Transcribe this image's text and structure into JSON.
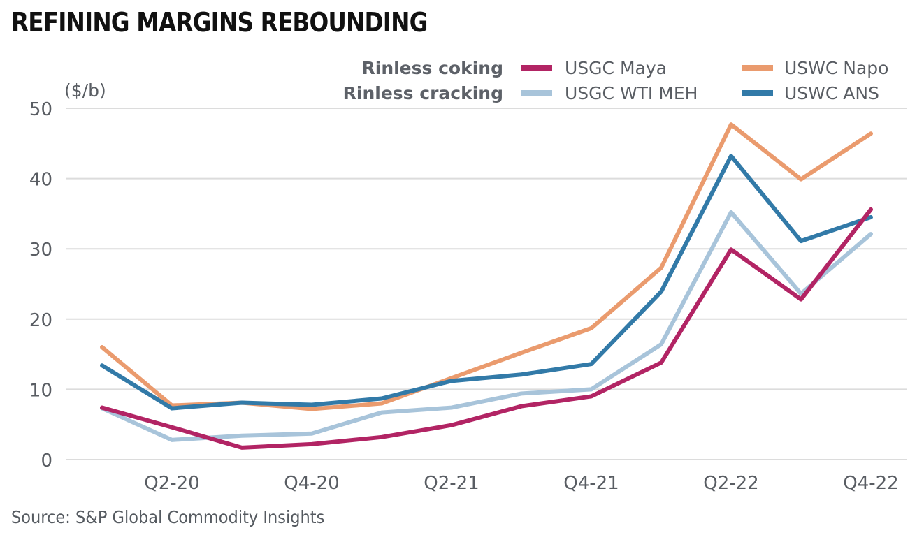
{
  "header": {
    "title": "REFINING MARGINS REBOUNDING"
  },
  "footer": {
    "source": "Source: S&P Global Commodity Insights"
  },
  "chart_data": {
    "type": "line",
    "title": "REFINING MARGINS REBOUNDING",
    "xlabel": "",
    "ylabel": "($/b)",
    "ylim": [
      0,
      50
    ],
    "yticks": [
      0,
      10,
      20,
      30,
      40,
      50
    ],
    "grid": true,
    "legend_position": "top-right",
    "x": [
      "Q1-20",
      "Q2-20",
      "Q3-20",
      "Q4-20",
      "Q1-21",
      "Q2-21",
      "Q3-21",
      "Q4-21",
      "Q1-22",
      "Q2-22",
      "Q3-22",
      "Q4-22"
    ],
    "xtick_labels": [
      "Q2-20",
      "Q4-20",
      "Q2-21",
      "Q4-21",
      "Q2-22",
      "Q4-22"
    ],
    "legend_groups": [
      {
        "label": "Rinless coking",
        "series": [
          "USGC Maya",
          "USWC Napo"
        ]
      },
      {
        "label": "Rinless cracking",
        "series": [
          "USGC WTI MEH",
          "USWC ANS"
        ]
      }
    ],
    "series": [
      {
        "name": "USGC WTI MEH",
        "color": "#A8C4DA",
        "values": [
          7.3,
          2.8,
          3.4,
          3.7,
          6.7,
          7.4,
          9.4,
          10.0,
          16.4,
          35.2,
          23.6,
          32.1
        ]
      },
      {
        "name": "USWC Napo",
        "color": "#EA9B6E",
        "values": [
          16.0,
          7.7,
          8.1,
          7.2,
          8.0,
          11.6,
          15.2,
          18.7,
          27.3,
          47.7,
          39.9,
          46.4
        ]
      },
      {
        "name": "USWC ANS",
        "color": "#327AA8",
        "values": [
          13.4,
          7.3,
          8.1,
          7.8,
          8.7,
          11.2,
          12.1,
          13.6,
          23.9,
          43.2,
          31.1,
          34.5
        ]
      },
      {
        "name": "USGC Maya",
        "color": "#B22464",
        "values": [
          7.4,
          4.6,
          1.7,
          2.2,
          3.2,
          4.9,
          7.6,
          9.0,
          13.8,
          29.9,
          22.8,
          35.6
        ]
      }
    ]
  }
}
